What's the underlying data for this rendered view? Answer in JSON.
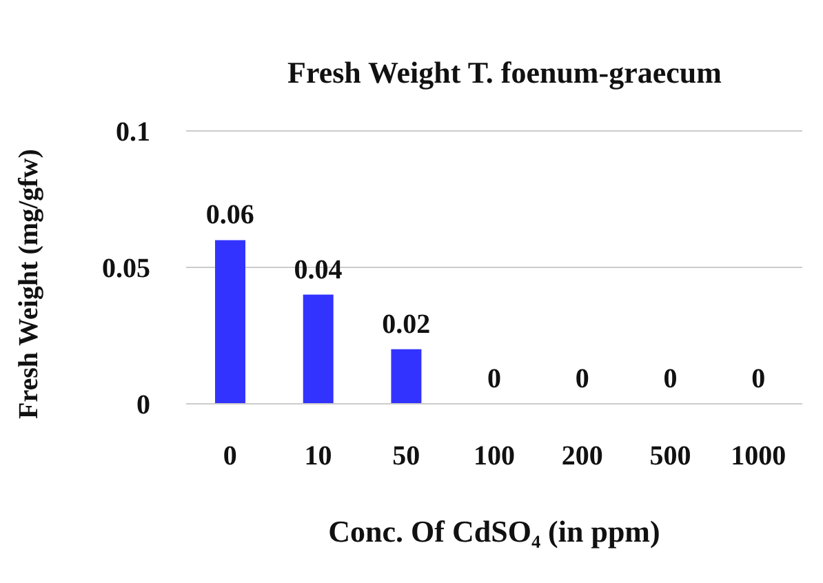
{
  "chart_data": {
    "type": "bar",
    "title": "Fresh Weight T. foenum-graecum",
    "xlabel": "Conc. Of CdSO₄ (in ppm)",
    "ylabel": "Fresh Weight (mg/gfw)",
    "categories": [
      "0",
      "10",
      "50",
      "100",
      "200",
      "500",
      "1000"
    ],
    "values": [
      0.06,
      0.04,
      0.02,
      0,
      0,
      0,
      0
    ],
    "color": "#3333ff",
    "ylim": [
      0,
      0.1
    ],
    "yticks": [
      0,
      0.05,
      0.1
    ],
    "grid": "y",
    "data_labels": true
  }
}
